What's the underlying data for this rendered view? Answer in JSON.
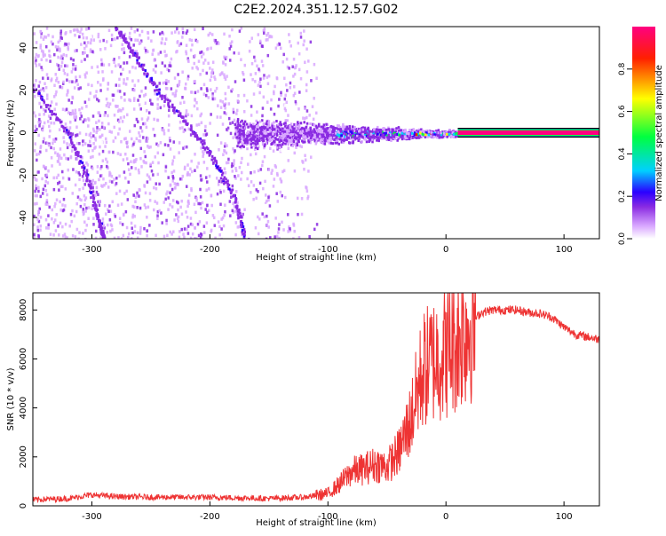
{
  "title": "C2E2.2024.351.12.57.G02",
  "chart_data": [
    {
      "type": "heatmap",
      "xlabel": "Height of straight line (km)",
      "ylabel": "Frequency (Hz)",
      "xlim": [
        -350,
        130
      ],
      "ylim": [
        -50,
        50
      ],
      "x_ticks": [
        -300,
        -200,
        -100,
        0,
        100
      ],
      "y_ticks": [
        -40,
        -20,
        0,
        20,
        40
      ],
      "x_tick_labels": [
        "-300",
        "-200",
        "-100",
        "0",
        "100"
      ],
      "y_tick_labels": [
        "-40",
        "-20",
        "0",
        "20",
        "40"
      ],
      "colorbar": {
        "label": "Normalized spectral amplitude",
        "range": [
          0,
          1
        ],
        "ticks": [
          0.0,
          0.2,
          0.4,
          0.6,
          0.8
        ],
        "tick_labels": [
          "0.0",
          "0.2",
          "0.4",
          "0.6",
          "0.8"
        ],
        "colors": [
          "#ffffff",
          "#d9a8ff",
          "#8a2be2",
          "#2a00ff",
          "#00d0ff",
          "#00ff40",
          "#ffff00",
          "#ff2000",
          "#ff0080"
        ]
      },
      "features": [
        {
          "kind": "curve",
          "points": [
            [
              -350,
              22
            ],
            [
              -320,
              0
            ],
            [
              -305,
              -20
            ],
            [
              -295,
              -40
            ],
            [
              -290,
              -50
            ]
          ]
        },
        {
          "kind": "curve",
          "points": [
            [
              -280,
              50
            ],
            [
              -265,
              38
            ],
            [
              -245,
              20
            ],
            [
              -220,
              5
            ],
            [
              -200,
              -10
            ],
            [
              -180,
              -30
            ],
            [
              -170,
              -50
            ]
          ]
        },
        {
          "kind": "band",
          "x_from": -180,
          "x_to": 10,
          "center_hz": 0,
          "width_hz_start": 6,
          "width_hz_end": 1
        },
        {
          "kind": "line",
          "x_from": 10,
          "x_to": 130,
          "y": 0,
          "amplitude": 0.95
        }
      ]
    },
    {
      "type": "line",
      "xlabel": "Height of straight line (km)",
      "ylabel": "SNR (10 * v/v)",
      "xlim": [
        -350,
        130
      ],
      "ylim": [
        0,
        8700
      ],
      "x_ticks": [
        -300,
        -200,
        -100,
        0,
        100
      ],
      "y_ticks": [
        0,
        2000,
        4000,
        6000,
        8000
      ],
      "x_tick_labels": [
        "-300",
        "-200",
        "-100",
        "0",
        "100"
      ],
      "y_tick_labels": [
        "0",
        "2000",
        "4000",
        "6000",
        "8000"
      ],
      "series": [
        {
          "color": "#ee3333",
          "x": [
            -350,
            -320,
            -300,
            -280,
            -250,
            -200,
            -150,
            -120,
            -100,
            -90,
            -80,
            -70,
            -60,
            -50,
            -40,
            -30,
            -20,
            -10,
            0,
            10,
            20,
            30,
            40,
            50,
            60,
            70,
            80,
            90,
            100,
            110,
            120,
            130
          ],
          "y": [
            250,
            300,
            450,
            380,
            350,
            350,
            300,
            350,
            500,
            900,
            1400,
            1500,
            1700,
            1600,
            2200,
            3500,
            5500,
            6000,
            6300,
            6800,
            7400,
            7900,
            8000,
            8000,
            8000,
            7900,
            7850,
            7700,
            7300,
            7000,
            6900,
            6800
          ]
        }
      ]
    }
  ]
}
